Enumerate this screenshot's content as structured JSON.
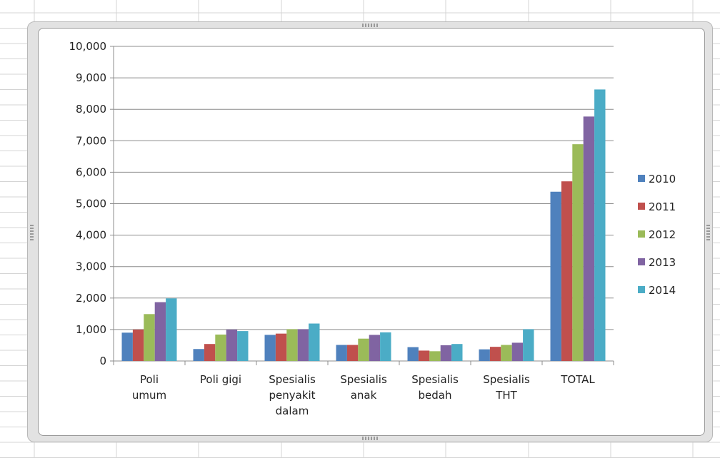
{
  "chart_data": {
    "type": "bar",
    "title": "",
    "xlabel": "",
    "ylabel": "",
    "categories": [
      [
        "Poli",
        "umum"
      ],
      [
        "Poli gigi"
      ],
      [
        "Spesialis",
        "penyakit",
        "dalam"
      ],
      [
        "Spesialis",
        "anak"
      ],
      [
        "Spesialis",
        "bedah"
      ],
      [
        "Spesialis",
        "THT"
      ],
      [
        "TOTAL"
      ]
    ],
    "series": [
      {
        "name": "2010",
        "color": "#4f81bd",
        "values": [
          900,
          380,
          830,
          510,
          440,
          370,
          5380
        ]
      },
      {
        "name": "2011",
        "color": "#c0504d",
        "values": [
          1000,
          540,
          870,
          510,
          330,
          450,
          5710
        ]
      },
      {
        "name": "2012",
        "color": "#9bbb59",
        "values": [
          1490,
          840,
          1010,
          710,
          310,
          510,
          6890
        ]
      },
      {
        "name": "2013",
        "color": "#8064a2",
        "values": [
          1870,
          1000,
          1010,
          830,
          500,
          580,
          7770
        ]
      },
      {
        "name": "2014",
        "color": "#4bacc6",
        "values": [
          1990,
          950,
          1190,
          910,
          540,
          1010,
          8630
        ]
      }
    ],
    "ylim": [
      0,
      10000
    ],
    "yticks": [
      {
        "value": 0,
        "label": "0"
      },
      {
        "value": 1000,
        "label": "1,000"
      },
      {
        "value": 2000,
        "label": "2,000"
      },
      {
        "value": 3000,
        "label": "3,000"
      },
      {
        "value": 4000,
        "label": "4,000"
      },
      {
        "value": 5000,
        "label": "5,000"
      },
      {
        "value": 6000,
        "label": "6,000"
      },
      {
        "value": 7000,
        "label": "7,000"
      },
      {
        "value": 8000,
        "label": "8,000"
      },
      {
        "value": 9000,
        "label": "9,000"
      },
      {
        "value": 10000,
        "label": "10,000"
      }
    ],
    "grid": true,
    "legend": "right"
  }
}
